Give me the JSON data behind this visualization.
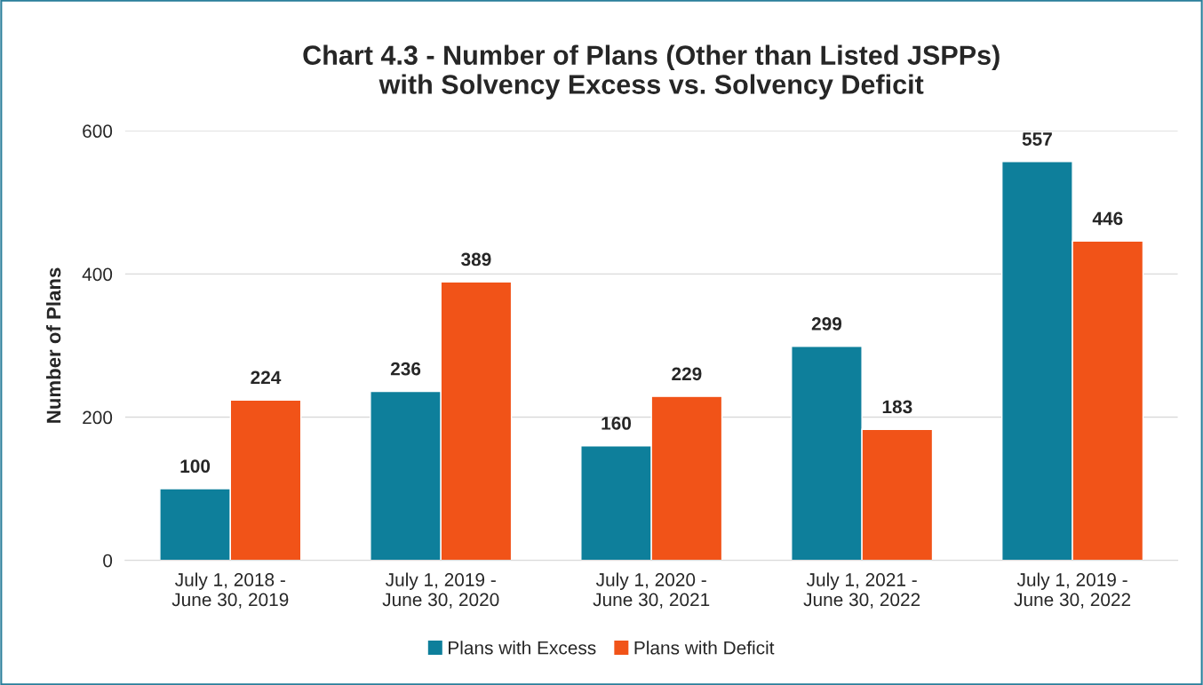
{
  "chart_data": {
    "type": "bar",
    "title": "Chart 4.3 - Number of Plans (Other than Listed JSPPs)\nwith Solvency Excess vs. Solvency Deficit",
    "ylabel": "Number of Plans",
    "categories": [
      "July 1, 2018 -\nJune 30, 2019",
      "July 1, 2019 -\nJune 30, 2020",
      "July 1, 2020 -\nJune 30, 2021",
      "July 1, 2021 -\nJune 30, 2022",
      "July 1, 2019 -\nJune 30, 2022"
    ],
    "series": [
      {
        "name": "Plans with Excess",
        "color": "#0e7f9b",
        "values": [
          100,
          236,
          160,
          299,
          557
        ]
      },
      {
        "name": "Plans with Deficit",
        "color": "#f15318",
        "values": [
          224,
          389,
          229,
          183,
          446
        ]
      }
    ],
    "ylim": [
      0,
      600
    ],
    "yticks": [
      0,
      200,
      400,
      600
    ],
    "grid": "y",
    "legend": "bottom",
    "data_labels": true
  }
}
